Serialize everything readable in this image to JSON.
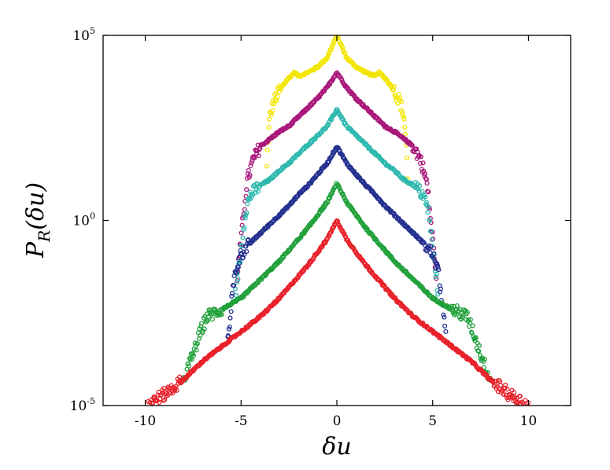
{
  "chart_data": {
    "type": "scatter",
    "xlabel": "δu",
    "ylabel_main": "P",
    "ylabel_sub": "R",
    "ylabel_arg": "(δu)",
    "xlim": [
      -12.2,
      12.2
    ],
    "ylim_log10": [
      -5,
      5
    ],
    "y_scale": "log",
    "grid": false,
    "x_ticks": [
      -10,
      -5,
      0,
      5,
      10
    ],
    "x_tick_labels": [
      "-10",
      "-5",
      "0",
      "5",
      "10"
    ],
    "y_ticks": [
      {
        "value": "1e5",
        "base": "10",
        "exp": "5",
        "log": 5
      },
      {
        "value": "1e0",
        "base": "10",
        "exp": "0",
        "log": 0
      },
      {
        "value": "1e-5",
        "base": "10",
        "exp": "-5",
        "log": -5
      }
    ],
    "series": [
      {
        "color": "#f2e600",
        "peak_log10": 5.0,
        "edge_x": 3.6,
        "profile": [
          [
            0,
            5.0
          ],
          [
            0.5,
            4.4
          ],
          [
            1,
            4.15
          ],
          [
            1.5,
            4.0
          ],
          [
            2.0,
            3.9
          ],
          [
            2.2,
            4.0
          ],
          [
            2.6,
            3.8
          ],
          [
            3.0,
            3.5
          ],
          [
            3.3,
            3.2
          ],
          [
            3.5,
            2.8
          ],
          [
            3.6,
            2.2
          ],
          [
            3.7,
            1.0
          ]
        ]
      },
      {
        "color": "#a8177a",
        "peak_log10": 4.0,
        "edge_x": 4.8,
        "profile": [
          [
            0,
            4.0
          ],
          [
            0.5,
            3.6
          ],
          [
            1,
            3.3
          ],
          [
            1.5,
            3.05
          ],
          [
            2,
            2.8
          ],
          [
            2.5,
            2.55
          ],
          [
            3,
            2.4
          ],
          [
            3.5,
            2.2
          ],
          [
            4,
            2.0
          ],
          [
            4.4,
            1.6
          ],
          [
            4.7,
            1.0
          ],
          [
            4.9,
            0.0
          ],
          [
            5.2,
            -1.5
          ]
        ]
      },
      {
        "color": "#2fb9ae",
        "peak_log10": 3.0,
        "edge_x": 5.0,
        "profile": [
          [
            0,
            3.0
          ],
          [
            0.5,
            2.55
          ],
          [
            1,
            2.3
          ],
          [
            1.5,
            2.05
          ],
          [
            2,
            1.8
          ],
          [
            2.5,
            1.55
          ],
          [
            3,
            1.35
          ],
          [
            3.5,
            1.1
          ],
          [
            4,
            0.95
          ],
          [
            4.5,
            0.7
          ],
          [
            4.8,
            0.2
          ],
          [
            5.0,
            -0.8
          ],
          [
            5.3,
            -2.0
          ]
        ]
      },
      {
        "color": "#23308f",
        "peak_log10": 2.0,
        "edge_x": 5.6,
        "profile": [
          [
            0,
            2.0
          ],
          [
            0.5,
            1.55
          ],
          [
            1,
            1.25
          ],
          [
            1.5,
            0.95
          ],
          [
            2,
            0.7
          ],
          [
            2.5,
            0.4
          ],
          [
            3,
            0.15
          ],
          [
            3.5,
            -0.1
          ],
          [
            4,
            -0.35
          ],
          [
            4.5,
            -0.6
          ],
          [
            5.0,
            -0.9
          ],
          [
            5.3,
            -1.4
          ],
          [
            5.5,
            -2.2
          ],
          [
            5.7,
            -3.3
          ]
        ]
      },
      {
        "color": "#20a03a",
        "peak_log10": 1.0,
        "edge_x": 7.3,
        "profile": [
          [
            0,
            1.0
          ],
          [
            0.5,
            0.5
          ],
          [
            1,
            0.15
          ],
          [
            1.5,
            -0.2
          ],
          [
            2,
            -0.5
          ],
          [
            3,
            -1.1
          ],
          [
            4,
            -1.6
          ],
          [
            5,
            -2.1
          ],
          [
            6,
            -2.4
          ],
          [
            6.8,
            -2.6
          ],
          [
            7.1,
            -3.0
          ],
          [
            7.5,
            -3.6
          ],
          [
            8,
            -4.3
          ]
        ]
      },
      {
        "color": "#e8202a",
        "peak_log10": 0.0,
        "edge_x": 10.0,
        "profile": [
          [
            0,
            0.0
          ],
          [
            0.5,
            -0.5
          ],
          [
            1,
            -0.85
          ],
          [
            1.5,
            -1.2
          ],
          [
            2,
            -1.5
          ],
          [
            3,
            -2.1
          ],
          [
            4,
            -2.6
          ],
          [
            5,
            -3.0
          ],
          [
            6,
            -3.4
          ],
          [
            7,
            -3.8
          ],
          [
            8,
            -4.3
          ],
          [
            9,
            -4.7
          ],
          [
            10,
            -5.0
          ]
        ]
      }
    ]
  }
}
